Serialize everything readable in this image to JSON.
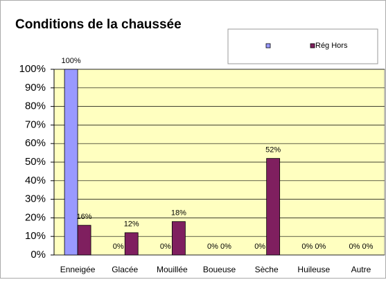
{
  "chart_data": {
    "type": "bar",
    "title": "Conditions de la chaussée",
    "categories": [
      "Enneigée",
      "Glacée",
      "Mouillée",
      "Boueuse",
      "Sèche",
      "Huileuse",
      "Autre"
    ],
    "series": [
      {
        "color": "#9999ff",
        "values": [
          100,
          0,
          0,
          0,
          0,
          0,
          0
        ],
        "value_labels": [
          "100%",
          "0%",
          "0%",
          "0%",
          "0%",
          "0%",
          "0%"
        ]
      },
      {
        "name": "Rég Hors",
        "color": "#7f1f5f",
        "values": [
          16,
          12,
          18,
          0,
          52,
          0,
          0
        ],
        "value_labels": [
          "16%",
          "12%",
          "18%",
          "0%",
          "52%",
          "0%",
          "0%"
        ]
      }
    ],
    "ylim": [
      0,
      100
    ],
    "yticks": [
      {
        "value": 0,
        "label": "0%"
      },
      {
        "value": 10,
        "label": "10%"
      },
      {
        "value": 20,
        "label": "20%"
      },
      {
        "value": 30,
        "label": "30%"
      },
      {
        "value": 40,
        "label": "40%"
      },
      {
        "value": 50,
        "label": "50%"
      },
      {
        "value": 60,
        "label": "60%"
      },
      {
        "value": 70,
        "label": "70%"
      },
      {
        "value": 80,
        "label": "80%"
      },
      {
        "value": 90,
        "label": "90%"
      },
      {
        "value": 100,
        "label": "100%"
      }
    ],
    "grid": true,
    "legend": "top-right"
  }
}
